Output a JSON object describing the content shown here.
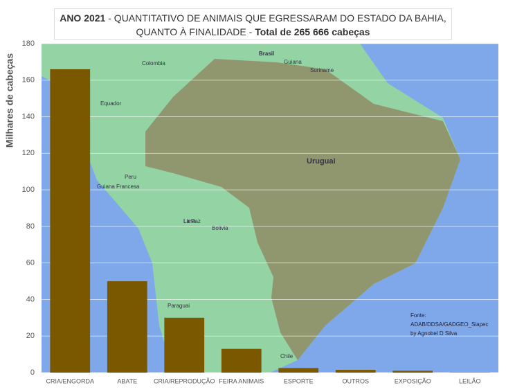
{
  "chart_data": {
    "type": "bar",
    "title_lead": "ANO 2021",
    "title": "- QUANTITATIVO  DE ANIMAIS QUE EGRESSARAM DO ESTADO DA BAHIA, QUANTO À FINALIDADE -",
    "title_total": "Total de 265 666 cabeças",
    "y_label": "Milhares de cabeças",
    "categories": [
      "CRIA/ENGORDA",
      "ABATE",
      "CRIA/REPRODUÇÃO",
      "FEIRA ANIMAIS",
      "ESPORTE",
      "OUTROS",
      "EXPOSIÇÃO",
      "LEILÃO"
    ],
    "values": [
      166,
      50,
      30,
      13,
      2.5,
      1.5,
      1,
      0.1
    ],
    "color": "#7a5800",
    "ylim": [
      0,
      180
    ],
    "yticks": [
      0,
      20,
      40,
      60,
      80,
      100,
      120,
      140,
      160,
      180
    ],
    "grid": true,
    "source": [
      "Fonte:",
      "ADAB/DDSA/GADGEO_Siapec",
      "by Agnobel D Silva"
    ],
    "map_labels": [
      "Colombia",
      "Equador",
      "Peru",
      "Bolivia",
      "Paraguai",
      "Chile",
      "Uruguai",
      "Brasil",
      "Guiana",
      "Suriname",
      "Guiana Francesa",
      "Lima",
      "La Paz"
    ]
  }
}
